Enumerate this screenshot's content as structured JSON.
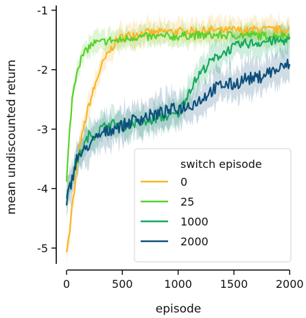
{
  "chart_data": {
    "type": "line",
    "title": "",
    "xlabel": "episode",
    "ylabel": "mean undiscounted return",
    "xlim": [
      -80,
      2060
    ],
    "ylim": [
      -5.3,
      -0.92
    ],
    "x_ticks": [
      0,
      500,
      1000,
      1500,
      2000
    ],
    "y_ticks": [
      -1,
      -2,
      -3,
      -4,
      -5
    ],
    "x_tick_labels": [
      "0",
      "500",
      "1000",
      "1500",
      "2000"
    ],
    "y_tick_labels": [
      "-1",
      "-2",
      "-3",
      "-4",
      "-5"
    ],
    "grid": false,
    "legend": {
      "title": "switch episode",
      "placement": "bottom-right"
    },
    "x": [
      0,
      25,
      50,
      75,
      100,
      150,
      200,
      250,
      300,
      350,
      400,
      450,
      500,
      600,
      700,
      800,
      900,
      1000,
      1100,
      1200,
      1300,
      1400,
      1500,
      1600,
      1700,
      1800,
      1900,
      2000
    ],
    "series": [
      {
        "name": "0",
        "color": "#f9b627",
        "values": [
          -5.0,
          -4.8,
          -4.3,
          -4.0,
          -3.5,
          -3.0,
          -2.6,
          -2.3,
          -2.0,
          -1.8,
          -1.65,
          -1.5,
          -1.45,
          -1.4,
          -1.38,
          -1.38,
          -1.36,
          -1.36,
          -1.35,
          -1.35,
          -1.33,
          -1.35,
          -1.33,
          -1.35,
          -1.32,
          -1.33,
          -1.33,
          -1.33
        ]
      },
      {
        "name": "25",
        "color": "#5ad12a",
        "values": [
          -3.9,
          -3.1,
          -2.5,
          -2.2,
          -1.95,
          -1.75,
          -1.62,
          -1.55,
          -1.55,
          -1.52,
          -1.5,
          -1.52,
          -1.5,
          -1.45,
          -1.45,
          -1.45,
          -1.44,
          -1.44,
          -1.42,
          -1.43,
          -1.42,
          -1.42,
          -1.42,
          -1.42,
          -1.42,
          -1.44,
          -1.42,
          -1.42
        ]
      },
      {
        "name": "1000",
        "color": "#16a860",
        "values": [
          -4.1,
          -4.0,
          -3.8,
          -3.6,
          -3.5,
          -3.3,
          -3.1,
          -3.1,
          -3.0,
          -2.95,
          -2.92,
          -2.9,
          -2.95,
          -2.9,
          -2.9,
          -2.82,
          -2.78,
          -2.75,
          -2.35,
          -2.05,
          -1.85,
          -1.72,
          -1.62,
          -1.56,
          -1.55,
          -1.52,
          -1.52,
          -1.5
        ]
      },
      {
        "name": "2000",
        "color": "#0d4f7c",
        "values": [
          -4.3,
          -4.0,
          -3.85,
          -3.6,
          -3.45,
          -3.4,
          -3.25,
          -3.2,
          -3.1,
          -3.05,
          -3.0,
          -2.95,
          -2.95,
          -2.85,
          -2.8,
          -2.75,
          -2.7,
          -2.65,
          -2.6,
          -2.5,
          -2.35,
          -2.25,
          -2.25,
          -2.15,
          -2.15,
          -2.05,
          -2.0,
          -1.9
        ]
      }
    ]
  }
}
